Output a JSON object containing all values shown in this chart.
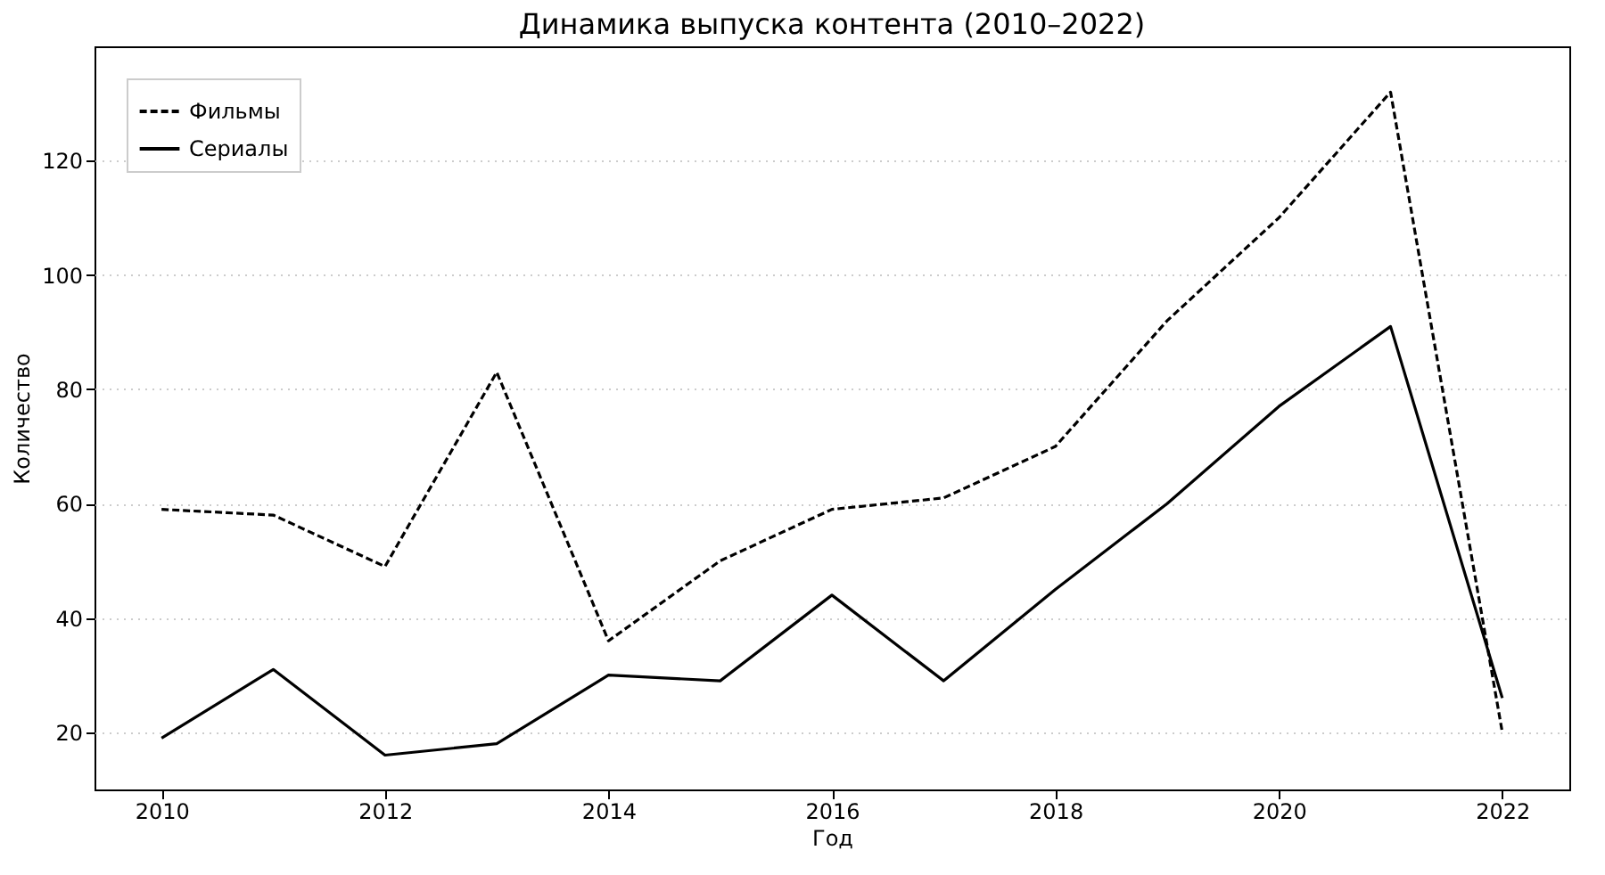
{
  "chart_data": {
    "type": "line",
    "title": "Динамика выпуска контента (2010–2022)",
    "xlabel": "Год",
    "ylabel": "Количество",
    "x": [
      2010,
      2011,
      2012,
      2013,
      2014,
      2015,
      2016,
      2017,
      2018,
      2019,
      2020,
      2021,
      2022
    ],
    "series": [
      {
        "name": "Фильмы",
        "color": "#000000",
        "line_style": "dashed",
        "values": [
          59,
          58,
          49,
          83,
          36,
          50,
          59,
          61,
          70,
          92,
          110,
          132,
          20
        ]
      },
      {
        "name": "Сериалы",
        "color": "#000000",
        "line_style": "solid",
        "values": [
          19,
          31,
          16,
          18,
          30,
          29,
          44,
          29,
          45,
          60,
          77,
          91,
          26
        ]
      }
    ],
    "xlim": [
      2009.4,
      2022.6
    ],
    "xticks": [
      2010,
      2012,
      2014,
      2016,
      2018,
      2020,
      2022
    ],
    "ylim": [
      10,
      140
    ],
    "yticks": [
      20,
      40,
      60,
      80,
      100,
      120
    ],
    "grid": "y",
    "legend": "top left"
  }
}
